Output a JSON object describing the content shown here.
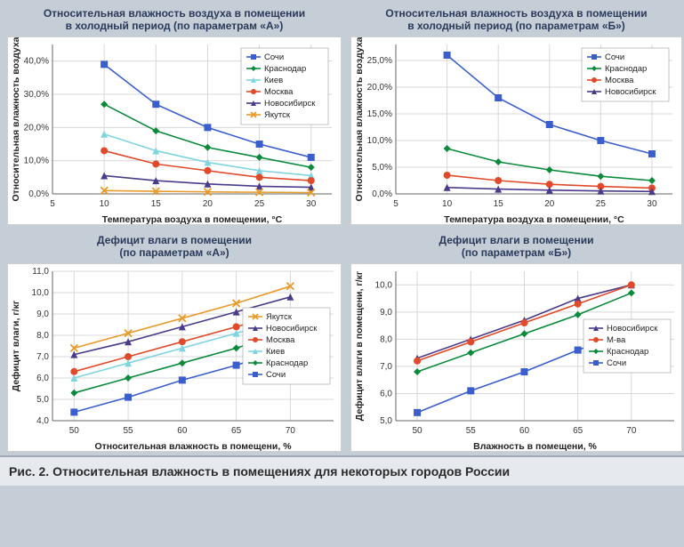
{
  "caption": "Рис. 2. Относительная влажность в помещениях для некоторых городов России",
  "charts": [
    {
      "id": "c0",
      "title": "Относительная влажность воздуха в помещении\nв холодный период (по параметрам «А»)",
      "xlabel": "Температура воздуха в помещении, °С",
      "ylabel": "Относительная влажность воздуха",
      "x": [
        10,
        15,
        20,
        25,
        30
      ],
      "xlim": [
        5,
        32
      ],
      "xtick_step": 5,
      "ylim": [
        0,
        45
      ],
      "ytick_step": 10,
      "y_suffix": ",0%",
      "legend_pos": "tr",
      "series": [
        {
          "name": "Сочи",
          "color": "#3a5fcd",
          "marker": "sq",
          "y": [
            39,
            27,
            20,
            15,
            11
          ]
        },
        {
          "name": "Краснодар",
          "color": "#0a8a3a",
          "marker": "di",
          "y": [
            27,
            19,
            14,
            11,
            8
          ]
        },
        {
          "name": "Киев",
          "color": "#7fd4e0",
          "marker": "tr",
          "y": [
            18,
            13,
            9.5,
            7,
            5.5
          ]
        },
        {
          "name": "Москва",
          "color": "#e04a2a",
          "marker": "ci",
          "y": [
            13,
            9,
            7,
            5,
            4
          ]
        },
        {
          "name": "Новосибирск",
          "color": "#4a3a8a",
          "marker": "tr",
          "y": [
            5.5,
            4,
            3,
            2.3,
            2
          ]
        },
        {
          "name": "Якутск",
          "color": "#e89a2a",
          "marker": "x",
          "y": [
            1,
            0.8,
            0.6,
            0.5,
            0.4
          ]
        }
      ]
    },
    {
      "id": "c1",
      "title": "Относительная влажность воздуха в помещении\nв холодный период (по параметрам «Б»)",
      "xlabel": "Температура воздуха в помещении, °С",
      "ylabel": "Относительная влажность воздуха",
      "x": [
        10,
        15,
        20,
        25,
        30
      ],
      "xlim": [
        5,
        32
      ],
      "xtick_step": 5,
      "ylim": [
        0,
        28
      ],
      "ytick_step": 5,
      "y_suffix": ",0%",
      "legend_pos": "tr",
      "series": [
        {
          "name": "Сочи",
          "color": "#3a5fcd",
          "marker": "sq",
          "y": [
            26,
            18,
            13,
            10,
            7.5
          ]
        },
        {
          "name": "Краснодар",
          "color": "#0a8a3a",
          "marker": "di",
          "y": [
            8.5,
            6,
            4.5,
            3.3,
            2.5
          ]
        },
        {
          "name": "Москва",
          "color": "#e04a2a",
          "marker": "ci",
          "y": [
            3.5,
            2.5,
            1.8,
            1.4,
            1.1
          ]
        },
        {
          "name": "Новосибирск",
          "color": "#4a3a8a",
          "marker": "tr",
          "y": [
            1.2,
            0.9,
            0.7,
            0.55,
            0.45
          ]
        }
      ]
    },
    {
      "id": "c2",
      "title": "Дефицит влаги в помещении\n(по параметрам «А»)",
      "xlabel": "Относительная влажность в помещени, %",
      "ylabel": "Дефицит влаги, г/кг",
      "x": [
        50,
        55,
        60,
        65,
        70
      ],
      "xlim": [
        48,
        74
      ],
      "xtick_step": 5,
      "ylim": [
        4,
        11
      ],
      "ytick_step": 1,
      "y_suffix": ",0",
      "legend_pos": "mr",
      "series": [
        {
          "name": "Якутск",
          "color": "#e89a2a",
          "marker": "x",
          "y": [
            7.4,
            8.1,
            8.8,
            9.5,
            10.3
          ]
        },
        {
          "name": "Новосибирск",
          "color": "#4a3a8a",
          "marker": "tr",
          "y": [
            7.1,
            7.7,
            8.4,
            9.1,
            9.8
          ]
        },
        {
          "name": "Москва",
          "color": "#e04a2a",
          "marker": "ci",
          "y": [
            6.3,
            7.0,
            7.7,
            8.4,
            9.1
          ]
        },
        {
          "name": "Киев",
          "color": "#7fd4e0",
          "marker": "tr",
          "y": [
            6.0,
            6.7,
            7.4,
            8.1,
            8.8
          ]
        },
        {
          "name": "Краснодар",
          "color": "#0a8a3a",
          "marker": "di",
          "y": [
            5.3,
            6.0,
            6.7,
            7.4,
            8.2
          ]
        },
        {
          "name": "Сочи",
          "color": "#3a5fcd",
          "marker": "sq",
          "y": [
            4.4,
            5.1,
            5.9,
            6.6,
            7.4
          ]
        }
      ]
    },
    {
      "id": "c3",
      "title": "Дефицит влаги в помещении\n(по параметрам «Б»)",
      "xlabel": "Влажность в помещени, %",
      "ylabel": "Дефицит влаги в помещени, г/кг",
      "x": [
        50,
        55,
        60,
        65,
        70
      ],
      "xlim": [
        48,
        74
      ],
      "xtick_step": 5,
      "ylim": [
        5,
        10.5
      ],
      "ytick_step": 1,
      "y_suffix": ",0",
      "legend_pos": "mr",
      "series": [
        {
          "name": "Новосибирск",
          "color": "#4a3a8a",
          "marker": "tr",
          "y": [
            7.3,
            8.0,
            8.7,
            9.5,
            10.0
          ]
        },
        {
          "name": "М-ва",
          "color": "#e04a2a",
          "marker": "ci",
          "y": [
            7.2,
            7.9,
            8.6,
            9.3,
            10.0
          ]
        },
        {
          "name": "Краснодар",
          "color": "#0a8a3a",
          "marker": "di",
          "y": [
            6.8,
            7.5,
            8.2,
            8.9,
            9.7
          ]
        },
        {
          "name": "Сочи",
          "color": "#3a5fcd",
          "marker": "sq",
          "y": [
            5.3,
            6.1,
            6.8,
            7.6,
            8.3
          ]
        }
      ]
    }
  ],
  "plot_style": {
    "bg": "#ffffff",
    "grid_color": "#d8d8d8",
    "axis_color": "#666666",
    "tick_fontsize": 10,
    "label_fontsize": 10.5,
    "line_width": 1.6,
    "marker_size": 4
  }
}
